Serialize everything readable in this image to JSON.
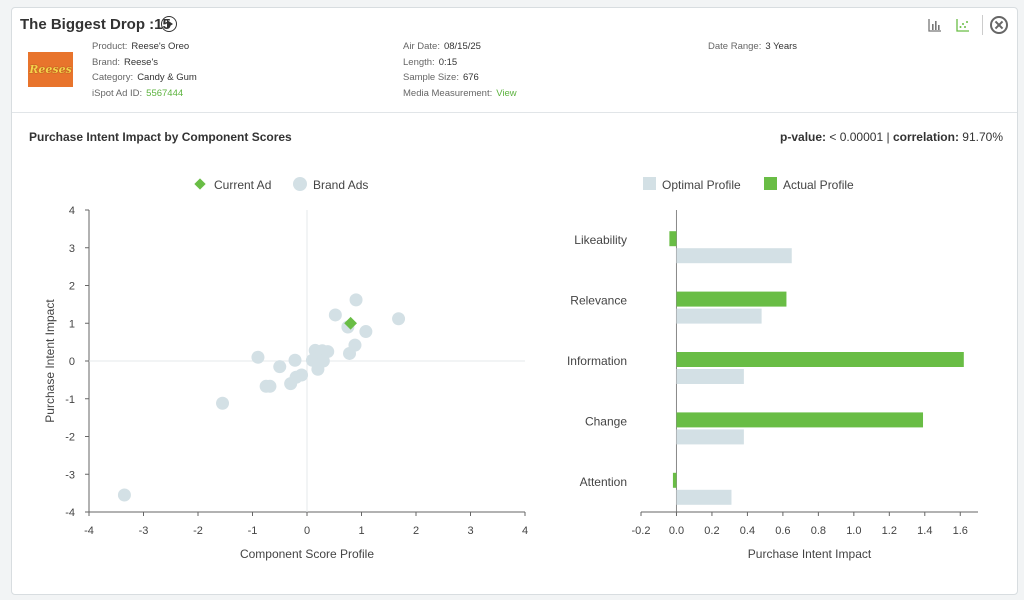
{
  "header": {
    "title": "The Biggest Drop :15",
    "logo_text": "Reeses",
    "meta_col1": [
      {
        "key": "Product:",
        "value": "Reese's Oreo"
      },
      {
        "key": "Brand:",
        "value": "Reese's"
      },
      {
        "key": "Category:",
        "value": "Candy & Gum"
      },
      {
        "key": "iSpot Ad ID:",
        "value": "5567444"
      }
    ],
    "meta_col2": [
      {
        "key": "Air Date:",
        "value": "08/15/25"
      },
      {
        "key": "Length:",
        "value": "0:15"
      },
      {
        "key": "Sample Size:",
        "value": "676"
      },
      {
        "key": "Media Measurement:",
        "value": "View"
      }
    ],
    "meta_col3": [
      {
        "key": "Date Range:",
        "value": "3 Years"
      }
    ]
  },
  "section": {
    "title": "Purchase Intent Impact by Component Scores",
    "pvalue_label": "p-value:",
    "pvalue": "< 0.00001",
    "separator": "|",
    "corr_label": "correlation:",
    "corr": "91.70%"
  },
  "colors": {
    "accent": "#69bd45",
    "brand_ads": "#d3e0e5",
    "grid": "#e6e9eb",
    "axis": "#555555"
  },
  "chart_data": [
    {
      "type": "scatter",
      "xlabel": "Component Score Profile",
      "ylabel": "Purchase Intent Impact",
      "xlim": [
        -4,
        4
      ],
      "ylim": [
        -4,
        4
      ],
      "xticks": [
        -4,
        -3,
        -2,
        -1,
        0,
        1,
        2,
        3,
        4
      ],
      "yticks": [
        4,
        3,
        2,
        1,
        0,
        -1,
        -2,
        -3,
        -4
      ],
      "legend": [
        "Current Ad",
        "Brand Ads"
      ],
      "legend_position": "top-center",
      "series": [
        {
          "name": "Current Ad",
          "points": [
            [
              0.8,
              1.0
            ]
          ]
        },
        {
          "name": "Brand Ads",
          "points": [
            [
              -3.35,
              -3.55
            ],
            [
              -1.55,
              -1.12
            ],
            [
              -0.9,
              0.1
            ],
            [
              -0.75,
              -0.67
            ],
            [
              -0.68,
              -0.67
            ],
            [
              -0.5,
              -0.15
            ],
            [
              -0.3,
              -0.6
            ],
            [
              -0.22,
              0.02
            ],
            [
              -0.2,
              -0.43
            ],
            [
              -0.1,
              -0.37
            ],
            [
              0.1,
              0.02
            ],
            [
              0.15,
              0.28
            ],
            [
              0.2,
              -0.22
            ],
            [
              0.25,
              0.12
            ],
            [
              0.28,
              0.27
            ],
            [
              0.3,
              0.0
            ],
            [
              0.38,
              0.25
            ],
            [
              0.52,
              1.22
            ],
            [
              0.75,
              0.9
            ],
            [
              0.78,
              0.2
            ],
            [
              0.88,
              0.42
            ],
            [
              0.9,
              1.62
            ],
            [
              1.08,
              0.78
            ],
            [
              1.68,
              1.12
            ]
          ]
        }
      ]
    },
    {
      "type": "bar",
      "orientation": "horizontal",
      "xlabel": "Purchase Intent Impact",
      "xlim": [
        -0.2,
        1.7
      ],
      "xticks": [
        -0.2,
        0.0,
        0.2,
        0.4,
        0.6,
        0.8,
        1.0,
        1.2,
        1.4,
        1.6
      ],
      "categories": [
        "Likeability",
        "Relevance",
        "Information",
        "Change",
        "Attention"
      ],
      "legend": [
        "Optimal Profile",
        "Actual Profile"
      ],
      "legend_position": "top-center",
      "series": [
        {
          "name": "Actual Profile",
          "values": [
            -0.04,
            0.62,
            1.62,
            1.39,
            -0.02
          ]
        },
        {
          "name": "Optimal Profile",
          "values": [
            0.65,
            0.48,
            0.38,
            0.38,
            0.31
          ]
        }
      ]
    }
  ]
}
